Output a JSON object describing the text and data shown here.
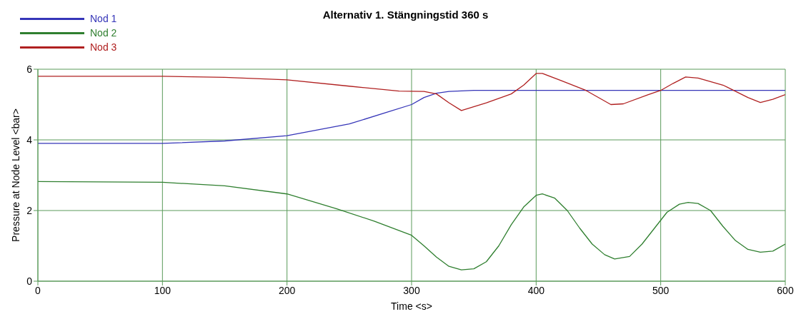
{
  "chart_data": {
    "type": "line",
    "title": "Alternativ 1. Stängningstid 360 s",
    "xlabel": "Time <s>",
    "ylabel": "Pressure at Node Level <bar>",
    "xlim": [
      0,
      600
    ],
    "xticks": [
      0,
      100,
      200,
      300,
      400,
      500,
      600
    ],
    "ylim": [
      0,
      6
    ],
    "yticks": [
      0,
      2,
      4,
      6
    ],
    "grid": true,
    "legend": "top left",
    "marker": "none",
    "line_style": "solid",
    "series": [
      {
        "name": "Nod 1",
        "color": "#3535b8",
        "x": [
          0,
          100,
          150,
          200,
          250,
          280,
          300,
          310,
          320,
          330,
          350,
          600
        ],
        "values": [
          3.9,
          3.9,
          3.97,
          4.12,
          4.45,
          4.78,
          5.0,
          5.2,
          5.32,
          5.37,
          5.4,
          5.4
        ]
      },
      {
        "name": "Nod 2",
        "color": "#2f7f2f",
        "x": [
          0,
          100,
          150,
          200,
          240,
          270,
          300,
          310,
          320,
          330,
          340,
          350,
          360,
          370,
          380,
          390,
          400,
          405,
          415,
          425,
          435,
          445,
          455,
          463,
          475,
          485,
          495,
          505,
          515,
          522,
          530,
          540,
          550,
          560,
          570,
          580,
          590,
          600
        ],
        "values": [
          2.82,
          2.8,
          2.7,
          2.47,
          2.05,
          1.7,
          1.3,
          1.0,
          0.68,
          0.42,
          0.32,
          0.35,
          0.55,
          1.0,
          1.6,
          2.1,
          2.43,
          2.47,
          2.35,
          2.0,
          1.5,
          1.05,
          0.75,
          0.63,
          0.7,
          1.05,
          1.5,
          1.95,
          2.18,
          2.23,
          2.2,
          2.0,
          1.55,
          1.15,
          0.9,
          0.82,
          0.85,
          1.05
        ]
      },
      {
        "name": "Nod 3",
        "color": "#b02020",
        "x": [
          0,
          100,
          150,
          200,
          250,
          290,
          310,
          320,
          330,
          340,
          360,
          380,
          390,
          400,
          405,
          420,
          440,
          460,
          470,
          490,
          500,
          510,
          520,
          530,
          550,
          570,
          580,
          590,
          600
        ],
        "values": [
          5.8,
          5.8,
          5.77,
          5.7,
          5.52,
          5.38,
          5.37,
          5.3,
          5.05,
          4.83,
          5.05,
          5.3,
          5.55,
          5.88,
          5.88,
          5.68,
          5.4,
          5.0,
          5.02,
          5.28,
          5.4,
          5.6,
          5.78,
          5.75,
          5.55,
          5.2,
          5.06,
          5.15,
          5.28
        ]
      }
    ]
  }
}
